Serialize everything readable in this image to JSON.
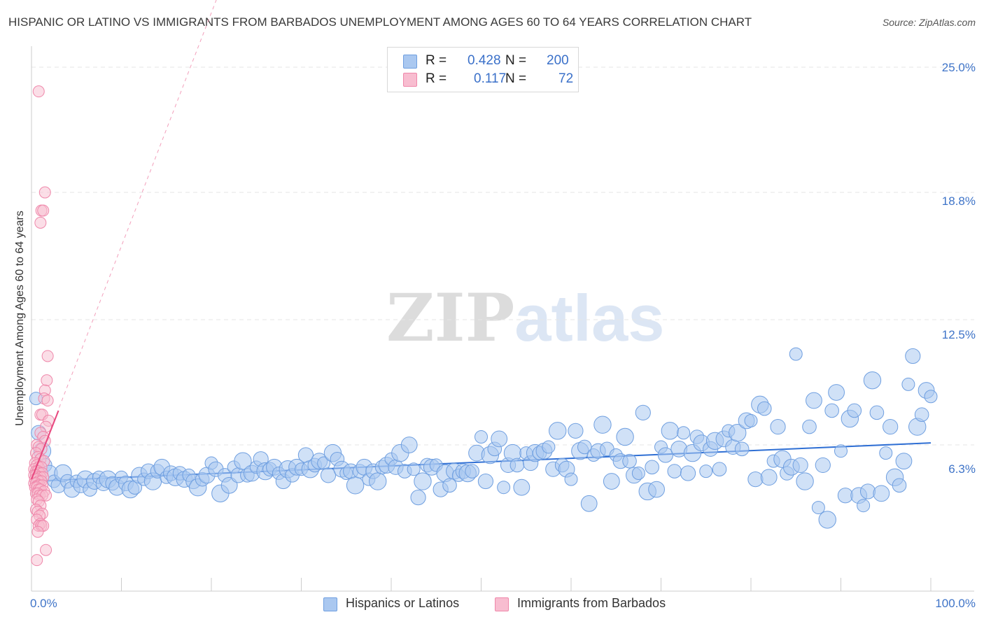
{
  "header": {
    "title": "HISPANIC OR LATINO VS IMMIGRANTS FROM BARBADOS UNEMPLOYMENT AMONG AGES 60 TO 64 YEARS CORRELATION CHART",
    "source": "Source: ZipAtlas.com"
  },
  "watermark": {
    "zip": "ZIP",
    "atlas": "atlas"
  },
  "legend": {
    "r_label": "R =",
    "n_label": "N =",
    "entries": [
      {
        "r": "0.428",
        "n": "200",
        "color": "#aac8f0",
        "border": "#6f9fe0"
      },
      {
        "r": "0.117",
        "n": "72",
        "color": "#f8bdd0",
        "border": "#ef87aa"
      }
    ]
  },
  "bottom_legend": {
    "items": [
      {
        "label": "Hispanics or Latinos",
        "color": "#aac8f0",
        "border": "#6f9fe0"
      },
      {
        "label": "Immigrants from Barbados",
        "color": "#f8bdd0",
        "border": "#ef87aa"
      }
    ]
  },
  "chart_data": {
    "type": "scatter",
    "title": "HISPANIC OR LATINO VS IMMIGRANTS FROM BARBADOS UNEMPLOYMENT AMONG AGES 60 TO 64 YEARS CORRELATION CHART",
    "xlabel": "",
    "ylabel": "Unemployment Among Ages 60 to 64 years",
    "xlim": [
      0,
      100
    ],
    "ylim": [
      0,
      25
    ],
    "x_tick_labels": [
      "0.0%",
      "100.0%"
    ],
    "y_ticks": [
      6.3,
      12.5,
      18.8,
      25.0
    ],
    "y_tick_labels": [
      "6.3%",
      "12.5%",
      "18.8%",
      "25.0%"
    ],
    "grid": true,
    "series": [
      {
        "name": "Hispanics or Latinos",
        "color": "#6f9fe0",
        "fill": "#aac8f0",
        "R": 0.428,
        "N": 200,
        "trendline": {
          "x": [
            0,
            100
          ],
          "y": [
            4.5,
            6.4
          ]
        },
        "points": [
          [
            0.5,
            8.6
          ],
          [
            0.8,
            6.9
          ],
          [
            1.2,
            6.0
          ],
          [
            1.5,
            5.3
          ],
          [
            2.0,
            4.9
          ],
          [
            2.5,
            4.5
          ],
          [
            3.0,
            4.3
          ],
          [
            3.5,
            4.9
          ],
          [
            4.0,
            4.5
          ],
          [
            4.5,
            4.1
          ],
          [
            5.0,
            4.5
          ],
          [
            5.5,
            4.3
          ],
          [
            6.0,
            4.6
          ],
          [
            6.5,
            4.1
          ],
          [
            7.0,
            4.5
          ],
          [
            7.5,
            4.7
          ],
          [
            8.0,
            4.4
          ],
          [
            8.5,
            4.6
          ],
          [
            9.0,
            4.4
          ],
          [
            9.5,
            4.2
          ],
          [
            10.0,
            4.7
          ],
          [
            10.5,
            4.4
          ],
          [
            11.0,
            4.1
          ],
          [
            11.5,
            4.2
          ],
          [
            12.0,
            4.8
          ],
          [
            12.5,
            4.6
          ],
          [
            13.0,
            5.0
          ],
          [
            13.5,
            4.5
          ],
          [
            14.0,
            5.0
          ],
          [
            14.5,
            5.2
          ],
          [
            15.0,
            4.7
          ],
          [
            15.5,
            4.9
          ],
          [
            16.0,
            4.7
          ],
          [
            16.5,
            4.9
          ],
          [
            17.0,
            4.6
          ],
          [
            17.5,
            4.8
          ],
          [
            18.0,
            4.5
          ],
          [
            18.5,
            4.2
          ],
          [
            19.0,
            4.6
          ],
          [
            19.5,
            4.8
          ],
          [
            20.0,
            5.4
          ],
          [
            20.5,
            5.1
          ],
          [
            21.0,
            3.9
          ],
          [
            21.5,
            4.8
          ],
          [
            22.0,
            4.3
          ],
          [
            22.5,
            5.2
          ],
          [
            23.0,
            4.8
          ],
          [
            23.5,
            5.5
          ],
          [
            24.0,
            4.8
          ],
          [
            24.5,
            4.9
          ],
          [
            25.0,
            5.2
          ],
          [
            25.5,
            5.6
          ],
          [
            26.0,
            5.0
          ],
          [
            26.5,
            5.1
          ],
          [
            27.0,
            5.2
          ],
          [
            27.5,
            4.9
          ],
          [
            28.0,
            4.5
          ],
          [
            28.5,
            5.1
          ],
          [
            29.0,
            4.8
          ],
          [
            29.5,
            5.2
          ],
          [
            30.0,
            5.1
          ],
          [
            30.5,
            5.8
          ],
          [
            31.0,
            5.1
          ],
          [
            31.5,
            5.3
          ],
          [
            32.0,
            5.5
          ],
          [
            32.5,
            5.4
          ],
          [
            33.0,
            4.8
          ],
          [
            33.5,
            5.9
          ],
          [
            34.0,
            5.6
          ],
          [
            34.5,
            5.1
          ],
          [
            35.0,
            4.9
          ],
          [
            35.5,
            5.0
          ],
          [
            36.0,
            4.3
          ],
          [
            36.5,
            5.0
          ],
          [
            37.0,
            5.2
          ],
          [
            37.5,
            4.6
          ],
          [
            38.0,
            5.0
          ],
          [
            38.5,
            4.5
          ],
          [
            39.0,
            5.2
          ],
          [
            39.5,
            5.3
          ],
          [
            40.0,
            5.6
          ],
          [
            40.5,
            5.2
          ],
          [
            41.0,
            5.9
          ],
          [
            41.5,
            5.0
          ],
          [
            42.0,
            6.3
          ],
          [
            42.5,
            5.1
          ],
          [
            43.0,
            3.7
          ],
          [
            43.5,
            4.5
          ],
          [
            44.0,
            5.3
          ],
          [
            44.5,
            5.2
          ],
          [
            45.0,
            5.3
          ],
          [
            45.5,
            4.1
          ],
          [
            46.0,
            4.9
          ],
          [
            46.5,
            4.3
          ],
          [
            47.0,
            5.0
          ],
          [
            47.5,
            4.8
          ],
          [
            48.0,
            5.0
          ],
          [
            48.5,
            4.9
          ],
          [
            49.0,
            5.0
          ],
          [
            49.5,
            5.9
          ],
          [
            50.0,
            6.7
          ],
          [
            50.5,
            4.5
          ],
          [
            51.0,
            5.8
          ],
          [
            51.5,
            6.1
          ],
          [
            52.0,
            6.6
          ],
          [
            52.5,
            4.2
          ],
          [
            53.0,
            5.3
          ],
          [
            53.5,
            5.9
          ],
          [
            54.0,
            5.3
          ],
          [
            54.5,
            4.2
          ],
          [
            55.0,
            5.9
          ],
          [
            55.5,
            5.4
          ],
          [
            56.0,
            5.9
          ],
          [
            56.5,
            5.9
          ],
          [
            57.0,
            6.0
          ],
          [
            57.5,
            6.2
          ],
          [
            58.0,
            5.1
          ],
          [
            58.5,
            7.0
          ],
          [
            59.0,
            5.3
          ],
          [
            59.5,
            5.1
          ],
          [
            60.0,
            4.6
          ],
          [
            60.5,
            7.0
          ],
          [
            61.0,
            6.0
          ],
          [
            61.5,
            6.2
          ],
          [
            62.0,
            3.4
          ],
          [
            62.5,
            5.8
          ],
          [
            63.0,
            6.0
          ],
          [
            63.5,
            7.3
          ],
          [
            64.0,
            6.1
          ],
          [
            64.5,
            4.5
          ],
          [
            65.0,
            5.8
          ],
          [
            65.5,
            5.5
          ],
          [
            66.0,
            6.7
          ],
          [
            66.5,
            5.5
          ],
          [
            67.0,
            4.8
          ],
          [
            67.5,
            4.9
          ],
          [
            68.0,
            7.9
          ],
          [
            68.5,
            4.0
          ],
          [
            69.0,
            5.2
          ],
          [
            69.5,
            4.1
          ],
          [
            70.0,
            6.2
          ],
          [
            70.5,
            5.8
          ],
          [
            71.0,
            7.0
          ],
          [
            71.5,
            5.0
          ],
          [
            72.0,
            6.1
          ],
          [
            72.5,
            6.9
          ],
          [
            73.0,
            4.9
          ],
          [
            73.5,
            5.9
          ],
          [
            74.0,
            6.7
          ],
          [
            74.5,
            6.4
          ],
          [
            75.0,
            5.0
          ],
          [
            75.5,
            6.1
          ],
          [
            76.0,
            6.5
          ],
          [
            76.5,
            5.1
          ],
          [
            77.0,
            6.6
          ],
          [
            77.5,
            7.0
          ],
          [
            78.0,
            6.2
          ],
          [
            78.5,
            6.9
          ],
          [
            79.0,
            6.1
          ],
          [
            79.5,
            7.5
          ],
          [
            80.0,
            7.5
          ],
          [
            80.5,
            4.6
          ],
          [
            81.0,
            8.3
          ],
          [
            81.5,
            8.1
          ],
          [
            82.0,
            4.7
          ],
          [
            82.5,
            5.5
          ],
          [
            83.0,
            7.2
          ],
          [
            83.5,
            5.6
          ],
          [
            84.0,
            4.9
          ],
          [
            84.5,
            5.2
          ],
          [
            85.0,
            10.8
          ],
          [
            85.5,
            5.3
          ],
          [
            86.0,
            4.5
          ],
          [
            86.5,
            7.2
          ],
          [
            87.0,
            8.5
          ],
          [
            87.5,
            3.2
          ],
          [
            88.0,
            5.3
          ],
          [
            88.5,
            2.6
          ],
          [
            89.0,
            8.0
          ],
          [
            89.5,
            8.9
          ],
          [
            90.0,
            6.0
          ],
          [
            90.5,
            3.8
          ],
          [
            91.0,
            7.6
          ],
          [
            91.5,
            8.0
          ],
          [
            92.0,
            3.8
          ],
          [
            92.5,
            3.3
          ],
          [
            93.0,
            4.0
          ],
          [
            93.5,
            9.5
          ],
          [
            94.0,
            7.9
          ],
          [
            94.5,
            3.9
          ],
          [
            95.0,
            5.9
          ],
          [
            95.5,
            7.2
          ],
          [
            96.0,
            4.7
          ],
          [
            96.5,
            4.3
          ],
          [
            97.0,
            5.5
          ],
          [
            97.5,
            9.3
          ],
          [
            98.0,
            10.7
          ],
          [
            98.5,
            7.2
          ],
          [
            99.0,
            7.8
          ],
          [
            99.5,
            9.0
          ],
          [
            100.0,
            8.7
          ]
        ]
      },
      {
        "name": "Immigrants from Barbados",
        "color": "#ef87aa",
        "fill": "#f8bdd0",
        "R": 0.117,
        "N": 72,
        "trendline": {
          "x": [
            0,
            3
          ],
          "y": [
            4.6,
            8.0
          ]
        },
        "trendline_extension": {
          "x": [
            0,
            22
          ],
          "y": [
            4.6,
            30.0
          ]
        },
        "points": [
          [
            0.8,
            23.8
          ],
          [
            1.5,
            18.8
          ],
          [
            1.1,
            17.9
          ],
          [
            1.3,
            17.9
          ],
          [
            1.0,
            17.3
          ],
          [
            1.8,
            10.7
          ],
          [
            1.7,
            9.5
          ],
          [
            1.5,
            9.0
          ],
          [
            1.4,
            8.6
          ],
          [
            1.8,
            8.5
          ],
          [
            1.0,
            7.8
          ],
          [
            1.2,
            7.8
          ],
          [
            1.9,
            7.5
          ],
          [
            1.6,
            7.2
          ],
          [
            1.0,
            6.9
          ],
          [
            1.3,
            6.7
          ],
          [
            1.5,
            6.5
          ],
          [
            0.6,
            6.3
          ],
          [
            0.8,
            6.2
          ],
          [
            1.1,
            6.1
          ],
          [
            0.5,
            5.9
          ],
          [
            0.7,
            5.7
          ],
          [
            1.0,
            5.6
          ],
          [
            1.4,
            5.5
          ],
          [
            0.4,
            5.4
          ],
          [
            0.6,
            5.3
          ],
          [
            0.8,
            5.2
          ],
          [
            1.1,
            5.2
          ],
          [
            0.3,
            5.1
          ],
          [
            0.5,
            5.0
          ],
          [
            0.7,
            5.0
          ],
          [
            0.9,
            4.9
          ],
          [
            1.2,
            4.9
          ],
          [
            0.3,
            4.8
          ],
          [
            0.5,
            4.8
          ],
          [
            0.7,
            4.7
          ],
          [
            1.0,
            4.7
          ],
          [
            1.3,
            4.7
          ],
          [
            0.4,
            4.6
          ],
          [
            0.6,
            4.6
          ],
          [
            0.8,
            4.5
          ],
          [
            1.1,
            4.5
          ],
          [
            0.3,
            4.4
          ],
          [
            0.5,
            4.4
          ],
          [
            0.7,
            4.3
          ],
          [
            0.9,
            4.3
          ],
          [
            1.2,
            4.3
          ],
          [
            0.4,
            4.2
          ],
          [
            0.6,
            4.2
          ],
          [
            0.8,
            4.1
          ],
          [
            1.0,
            4.1
          ],
          [
            1.4,
            4.0
          ],
          [
            0.5,
            3.9
          ],
          [
            0.7,
            3.9
          ],
          [
            0.9,
            3.8
          ],
          [
            1.2,
            3.8
          ],
          [
            1.6,
            3.8
          ],
          [
            0.6,
            3.6
          ],
          [
            0.8,
            3.5
          ],
          [
            1.0,
            3.3
          ],
          [
            0.5,
            3.1
          ],
          [
            0.7,
            3.0
          ],
          [
            1.2,
            2.9
          ],
          [
            0.9,
            2.8
          ],
          [
            0.6,
            2.6
          ],
          [
            1.0,
            2.4
          ],
          [
            0.8,
            2.3
          ],
          [
            1.1,
            2.3
          ],
          [
            1.3,
            2.3
          ],
          [
            0.7,
            2.0
          ],
          [
            1.6,
            1.1
          ],
          [
            0.6,
            0.6
          ]
        ]
      }
    ]
  }
}
